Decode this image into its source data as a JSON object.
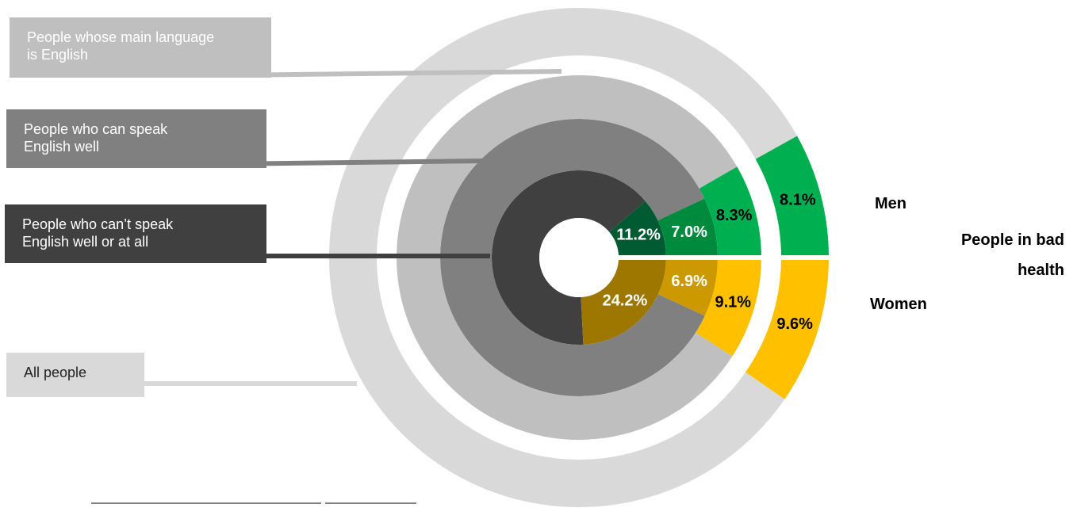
{
  "chart_data": {
    "type": "nested-donut",
    "title": "People in bad health",
    "categories": [
      "Men",
      "Women"
    ],
    "segment_colors": [
      "#00b050",
      "#ffc000"
    ],
    "series": [
      {
        "name": "People who can’t speak English well or at all",
        "color": "#404040",
        "segment_colors": [
          "#005a32",
          "#9e7700"
        ],
        "label_color": "#ffffff",
        "values": [
          11.2,
          24.2
        ],
        "value_labels": [
          "11.2%",
          "24.2%"
        ]
      },
      {
        "name": "People who can speak English well",
        "color": "#808080",
        "segment_colors": [
          "#008a3e",
          "#cc9900"
        ],
        "label_color": "#ffffff",
        "values": [
          7.0,
          6.9
        ],
        "value_labels": [
          "7.0%",
          "6.9%"
        ]
      },
      {
        "name": "People whose main language is English",
        "color": "#bfbfbf",
        "segment_colors": [
          "#00b050",
          "#ffc000"
        ],
        "label_color": "#000000",
        "values": [
          8.3,
          9.1
        ],
        "value_labels": [
          "8.3%",
          "9.1%"
        ]
      },
      {
        "name": "All people",
        "color": "#d9d9d9",
        "segment_colors": [
          "#00b050",
          "#ffc000"
        ],
        "label_color": "#000000",
        "values": [
          8.1,
          9.6
        ],
        "value_labels": [
          "8.1%",
          "9.6%"
        ]
      }
    ]
  }
}
